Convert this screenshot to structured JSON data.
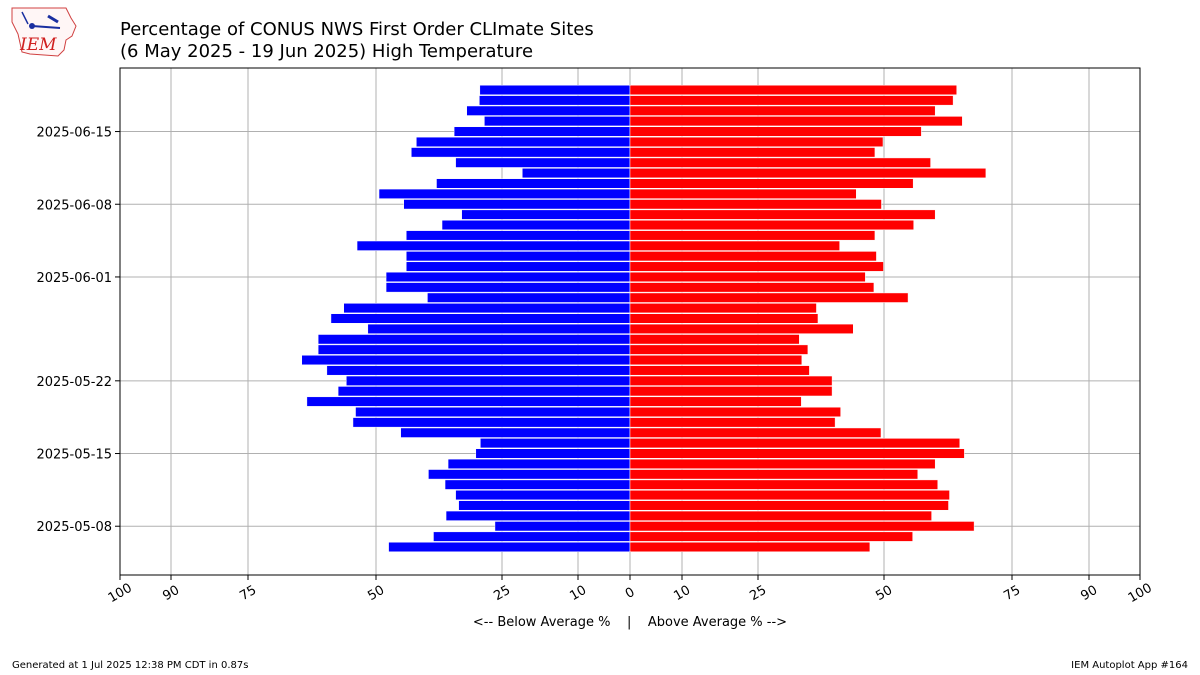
{
  "colors": {
    "below": "#0000ff",
    "above": "#ff0000",
    "grid": "#b0b0b0"
  },
  "logo": {
    "text": "IEM"
  },
  "footer": {
    "left": "Generated at 1 Jul 2025 12:38 PM CDT in 0.87s",
    "right": "IEM Autoplot App #164"
  },
  "chart_data": {
    "type": "bar",
    "orientation": "horizontal-diverging",
    "title": "Percentage of CONUS NWS First Order CLImate Sites",
    "subtitle": "(6 May 2025 - 19 Jun 2025) High Temperature",
    "xlabel": "<-- Below Average %    |    Above Average % -->",
    "x_ticks": [
      -100,
      -90,
      -75,
      -50,
      -25,
      -10,
      0,
      10,
      25,
      50,
      75,
      90,
      100
    ],
    "x_tick_labels": [
      "100",
      "90",
      "75",
      "50",
      "25",
      "10",
      "0",
      "10",
      "25",
      "50",
      "75",
      "90",
      "100"
    ],
    "y_ticks": [
      "2025-05-08",
      "2025-05-15",
      "2025-05-22",
      "2025-06-01",
      "2025-06-08",
      "2025-06-15"
    ],
    "grid": true,
    "dates": [
      "2025-05-06",
      "2025-05-07",
      "2025-05-08",
      "2025-05-09",
      "2025-05-10",
      "2025-05-11",
      "2025-05-12",
      "2025-05-13",
      "2025-05-14",
      "2025-05-15",
      "2025-05-16",
      "2025-05-17",
      "2025-05-18",
      "2025-05-19",
      "2025-05-20",
      "2025-05-21",
      "2025-05-22",
      "2025-05-23",
      "2025-05-24",
      "2025-05-25",
      "2025-05-26",
      "2025-05-27",
      "2025-05-28",
      "2025-05-29",
      "2025-05-30",
      "2025-05-31",
      "2025-06-01",
      "2025-06-02",
      "2025-06-03",
      "2025-06-04",
      "2025-06-05",
      "2025-06-06",
      "2025-06-07",
      "2025-06-08",
      "2025-06-09",
      "2025-06-10",
      "2025-06-11",
      "2025-06-12",
      "2025-06-13",
      "2025-06-14",
      "2025-06-15",
      "2025-06-16",
      "2025-06-17",
      "2025-06-18",
      "2025-06-19"
    ],
    "series": [
      {
        "name": "Below Average",
        "values": [
          47.5,
          38.6,
          26.4,
          36.1,
          33.6,
          34.2,
          36.3,
          39.6,
          35.7,
          30.2,
          29.3,
          45.1,
          54.5,
          54.0,
          63.5,
          57.4,
          55.8,
          59.6,
          64.5,
          61.3,
          61.3,
          51.6,
          58.8,
          56.3,
          39.8,
          48.0,
          48.0,
          44.0,
          44.0,
          53.7,
          44.0,
          36.9,
          33.0,
          44.5,
          49.4,
          38.0,
          21.0,
          34.2,
          43.0,
          42.0,
          34.5,
          28.5,
          32.0,
          29.5,
          29.4
        ]
      },
      {
        "name": "Above Average",
        "values": [
          47.2,
          55.6,
          67.6,
          59.3,
          62.6,
          62.8,
          60.5,
          56.6,
          60.0,
          65.7,
          64.8,
          49.4,
          40.3,
          41.4,
          33.6,
          39.7,
          39.7,
          35.2,
          33.7,
          34.9,
          33.2,
          43.9,
          36.9,
          36.6,
          54.7,
          48.0,
          46.3,
          49.9,
          48.5,
          41.2,
          48.2,
          55.8,
          60.0,
          49.5,
          44.5,
          55.7,
          69.9,
          59.1,
          48.2,
          49.8,
          57.3,
          65.3,
          60.0,
          63.5,
          64.2
        ]
      }
    ]
  }
}
